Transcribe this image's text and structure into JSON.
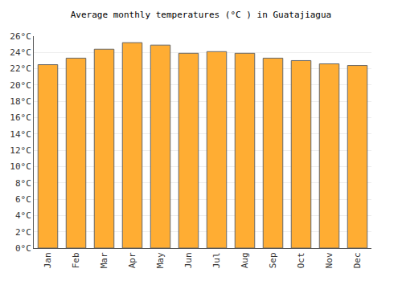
{
  "chart_data": {
    "type": "bar",
    "title": "Average monthly temperatures (°C ) in Guatajiagua",
    "categories": [
      "Jan",
      "Feb",
      "Mar",
      "Apr",
      "May",
      "Jun",
      "Jul",
      "Aug",
      "Sep",
      "Oct",
      "Nov",
      "Dec"
    ],
    "values": [
      22.5,
      23.3,
      24.4,
      25.2,
      24.9,
      23.9,
      24.1,
      23.9,
      23.3,
      23.0,
      22.6,
      22.4
    ],
    "color": "#ffad33",
    "ylim": [
      0,
      26
    ],
    "yticks": [
      {
        "value": 0,
        "label": "0°C"
      },
      {
        "value": 2,
        "label": "2°C"
      },
      {
        "value": 4,
        "label": "4°C"
      },
      {
        "value": 6,
        "label": "6°C"
      },
      {
        "value": 8,
        "label": "8°C"
      },
      {
        "value": 10,
        "label": "10°C"
      },
      {
        "value": 12,
        "label": "12°C"
      },
      {
        "value": 14,
        "label": "14°C"
      },
      {
        "value": 16,
        "label": "16°C"
      },
      {
        "value": 18,
        "label": "18°C"
      },
      {
        "value": 20,
        "label": "20°C"
      },
      {
        "value": 22,
        "label": "22°C"
      },
      {
        "value": 24,
        "label": "24°C"
      },
      {
        "value": 26,
        "label": "26°C"
      }
    ],
    "grid": true
  }
}
